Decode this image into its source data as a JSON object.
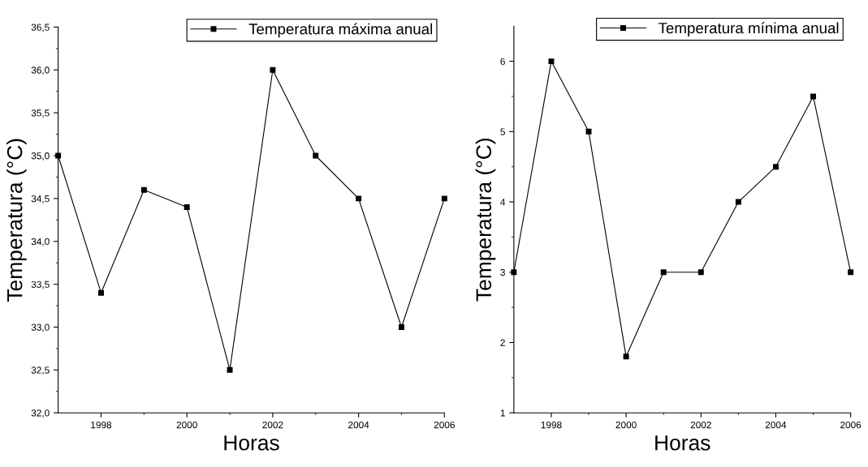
{
  "chart_data": [
    {
      "type": "line",
      "xlabel": "Horas",
      "ylabel": "Temperatura (°C)",
      "x": [
        1997,
        1998,
        1999,
        2000,
        2001,
        2002,
        2003,
        2004,
        2005,
        2006
      ],
      "series": [
        {
          "name": "Temperatura máxima anual",
          "color": "#000000",
          "values": [
            35.0,
            33.4,
            34.6,
            34.4,
            32.5,
            36.0,
            35.0,
            34.5,
            33.0,
            34.5
          ]
        }
      ],
      "xlim": [
        1997,
        2006
      ],
      "xticks": [
        1998,
        2000,
        2002,
        2004,
        2006
      ],
      "ylim": [
        32.0,
        36.5
      ],
      "yticks": [
        {
          "value": 32.0,
          "label": "32,0"
        },
        {
          "value": 32.5,
          "label": "32,5"
        },
        {
          "value": 33.0,
          "label": "33,0"
        },
        {
          "value": 33.5,
          "label": "33,5"
        },
        {
          "value": 34.0,
          "label": "34,0"
        },
        {
          "value": 34.5,
          "label": "34,5"
        },
        {
          "value": 35.0,
          "label": "35,0"
        },
        {
          "value": 35.5,
          "label": "35,5"
        },
        {
          "value": 36.0,
          "label": "36,0"
        },
        {
          "value": 36.5,
          "label": "36,5"
        }
      ],
      "marker": "square",
      "line_style": "solid",
      "legend": "top right",
      "grid": false
    },
    {
      "type": "line",
      "xlabel": "Horas",
      "ylabel": "Temperatura (°C)",
      "x": [
        1997,
        1998,
        1999,
        2000,
        2001,
        2002,
        2003,
        2004,
        2005,
        2006
      ],
      "series": [
        {
          "name": "Temperatura mínima anual",
          "color": "#000000",
          "values": [
            3.0,
            6.0,
            5.0,
            1.8,
            3.0,
            3.0,
            4.0,
            4.5,
            5.5,
            3.0
          ]
        }
      ],
      "xlim": [
        1997,
        2006
      ],
      "xticks": [
        1998,
        2000,
        2002,
        2004,
        2006
      ],
      "ylim": [
        1,
        6.5
      ],
      "yticks": [
        1,
        2,
        3,
        4,
        5,
        6
      ],
      "marker": "square",
      "line_style": "solid",
      "legend": "top right",
      "grid": false
    }
  ]
}
